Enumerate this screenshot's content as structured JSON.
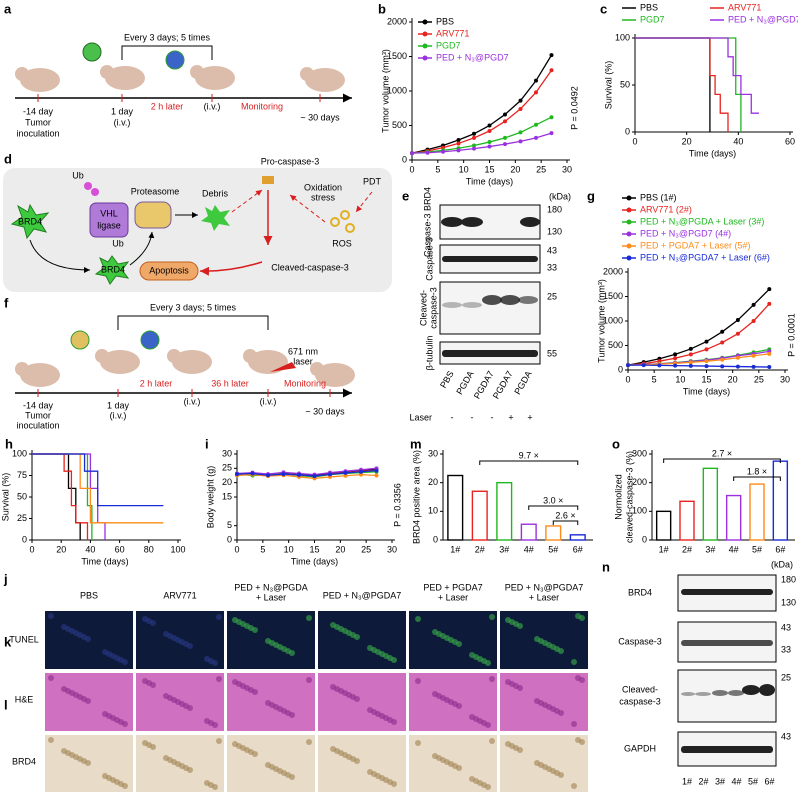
{
  "chart_data": [
    {
      "letter": "b",
      "type": "line",
      "x": [
        0,
        3,
        6,
        9,
        12,
        15,
        18,
        21,
        24,
        27
      ],
      "xlabel": "Time (days)",
      "ylabel": "Tumor volume (mm³)",
      "xlim": [
        0,
        30
      ],
      "xticks": [
        0,
        5,
        10,
        15,
        20,
        25,
        30
      ],
      "ylim": [
        0,
        2000
      ],
      "yticks": [
        0,
        500,
        1000,
        1500,
        2000
      ],
      "legend": "upper left",
      "annotations": [
        "P = 0.0492"
      ],
      "series": [
        {
          "name": "PBS",
          "color": "#000000",
          "values": [
            100,
            150,
            210,
            290,
            380,
            500,
            660,
            860,
            1150,
            1520
          ]
        },
        {
          "name": "ARV771",
          "color": "#e8231f",
          "values": [
            100,
            130,
            180,
            240,
            320,
            420,
            560,
            740,
            980,
            1300
          ]
        },
        {
          "name": "PGD7",
          "color": "#1fb81f",
          "values": [
            100,
            115,
            140,
            170,
            210,
            260,
            320,
            400,
            510,
            620
          ]
        },
        {
          "name": "PED + N₃@PGD7",
          "color": "#9b30e0",
          "values": [
            100,
            105,
            120,
            140,
            165,
            195,
            230,
            270,
            320,
            390
          ]
        }
      ]
    },
    {
      "letter": "c",
      "type": "step",
      "xlabel": "Time (days)",
      "ylabel": "Survival (%)",
      "xlim": [
        0,
        60
      ],
      "xticks": [
        0,
        20,
        40,
        60
      ],
      "ylim": [
        0,
        100
      ],
      "yticks": [
        0,
        50,
        100
      ],
      "legend": "top",
      "series": [
        {
          "name": "PBS",
          "color": "#000000",
          "x": [
            0,
            29
          ],
          "values": [
            100,
            0
          ]
        },
        {
          "name": "ARV771",
          "color": "#e8231f",
          "x": [
            0,
            29,
            31,
            33,
            36
          ],
          "values": [
            100,
            60,
            40,
            20,
            0
          ]
        },
        {
          "name": "PGD7",
          "color": "#1fb81f",
          "x": [
            0,
            39,
            41
          ],
          "values": [
            100,
            40,
            0
          ]
        },
        {
          "name": "PED + N₃@PGD7",
          "color": "#9b30e0",
          "x": [
            0,
            36,
            38,
            41,
            45,
            48
          ],
          "values": [
            100,
            80,
            60,
            40,
            20,
            20
          ]
        }
      ]
    },
    {
      "letter": "g",
      "type": "line",
      "x": [
        0,
        3,
        6,
        9,
        12,
        15,
        18,
        21,
        24,
        27
      ],
      "xlabel": "Time (days)",
      "ylabel": "Tumor volume (mm³)",
      "xlim": [
        0,
        30
      ],
      "xticks": [
        0,
        5,
        10,
        15,
        20,
        25,
        30
      ],
      "ylim": [
        0,
        2000
      ],
      "yticks": [
        0,
        500,
        1000,
        1500,
        2000
      ],
      "legend": "top",
      "annotations": [
        "P = 0.0001"
      ],
      "series": [
        {
          "name": "PBS (1#)",
          "color": "#000000",
          "values": [
            100,
            160,
            230,
            320,
            430,
            580,
            780,
            1020,
            1330,
            1650
          ]
        },
        {
          "name": "ARV771 (2#)",
          "color": "#e8231f",
          "values": [
            100,
            130,
            180,
            240,
            320,
            420,
            560,
            740,
            1000,
            1350
          ]
        },
        {
          "name": "PED + N₃@PGDA + Laser (3#)",
          "color": "#1fb81f",
          "values": [
            100,
            110,
            130,
            150,
            180,
            210,
            250,
            300,
            360,
            420
          ]
        },
        {
          "name": "PED + N₃@PGD7 (4#)",
          "color": "#9b30e0",
          "values": [
            100,
            110,
            125,
            145,
            170,
            200,
            240,
            290,
            330,
            380
          ]
        },
        {
          "name": "PED + PGDA7 + Laser (5#)",
          "color": "#ff8c1a",
          "values": [
            100,
            105,
            120,
            135,
            155,
            180,
            210,
            250,
            290,
            330
          ]
        },
        {
          "name": "PED + N₃@PGDA7 + Laser (6#)",
          "color": "#1a2bd6",
          "values": [
            100,
            100,
            95,
            90,
            85,
            80,
            75,
            70,
            65,
            60
          ]
        }
      ]
    },
    {
      "letter": "h",
      "type": "step",
      "xlabel": "Time (days)",
      "ylabel": "Survival (%)",
      "xlim": [
        0,
        100
      ],
      "xticks": [
        0,
        20,
        40,
        60,
        80,
        100
      ],
      "ylim": [
        0,
        100
      ],
      "yticks": [
        0,
        25,
        50,
        75,
        100
      ],
      "series": [
        {
          "color": "#000000",
          "x": [
            0,
            25,
            30,
            33
          ],
          "values": [
            100,
            60,
            20,
            0
          ]
        },
        {
          "color": "#e8231f",
          "x": [
            0,
            22,
            27,
            30,
            38
          ],
          "values": [
            100,
            80,
            40,
            20,
            0
          ]
        },
        {
          "color": "#1fb81f",
          "x": [
            0,
            38,
            41
          ],
          "values": [
            100,
            40,
            0
          ]
        },
        {
          "color": "#9b30e0",
          "x": [
            0,
            40,
            45,
            50
          ],
          "values": [
            100,
            60,
            20,
            0
          ]
        },
        {
          "color": "#ff8c1a",
          "x": [
            0,
            33,
            40,
            90
          ],
          "values": [
            100,
            60,
            20,
            20
          ]
        },
        {
          "color": "#1a2bd6",
          "x": [
            0,
            36,
            45,
            90
          ],
          "values": [
            100,
            80,
            40,
            40
          ]
        }
      ]
    },
    {
      "letter": "i",
      "type": "line",
      "x": [
        0,
        3,
        6,
        9,
        12,
        15,
        18,
        21,
        24,
        27
      ],
      "xlabel": "Time (days)",
      "ylabel": "Body weight (g)",
      "xlim": [
        0,
        30
      ],
      "xticks": [
        0,
        5,
        10,
        15,
        20,
        25,
        30
      ],
      "ylim": [
        0,
        30
      ],
      "yticks": [
        0,
        5,
        15,
        20,
        25,
        30
      ],
      "annotations": [
        "P = 0.3356"
      ],
      "series": [
        {
          "color": "#000000",
          "values": [
            23,
            23.2,
            22.8,
            23.5,
            23,
            22.5,
            23.3,
            23.8,
            24.2,
            24.6
          ]
        },
        {
          "color": "#e8231f",
          "values": [
            22.8,
            23,
            22.5,
            23,
            22.8,
            22.2,
            23,
            23.5,
            24,
            24.3
          ]
        },
        {
          "color": "#1fb81f",
          "values": [
            23,
            22.5,
            22.7,
            23.2,
            22.5,
            22,
            22.8,
            23.2,
            23.5,
            23.8
          ]
        },
        {
          "color": "#9b30e0",
          "values": [
            23.2,
            23.5,
            23,
            23.6,
            23.2,
            22.8,
            23.5,
            24,
            24.5,
            25
          ]
        },
        {
          "color": "#ff8c1a",
          "values": [
            22.5,
            22.8,
            22.3,
            22.6,
            22,
            21.5,
            22,
            22.4,
            22.8,
            22.5
          ]
        },
        {
          "color": "#1a2bd6",
          "values": [
            23,
            23.2,
            22.6,
            23,
            22.7,
            22.3,
            22.9,
            23.4,
            23.8,
            24.2
          ]
        }
      ]
    },
    {
      "letter": "m",
      "type": "bar",
      "categories": [
        "1#",
        "2#",
        "3#",
        "4#",
        "5#",
        "6#"
      ],
      "values": [
        22.5,
        17,
        20,
        5.5,
        4.9,
        1.8
      ],
      "colors": [
        "#000000",
        "#e8231f",
        "#1fb81f",
        "#9b30e0",
        "#ff8c1a",
        "#1a2bd6"
      ],
      "ylabel": "BRD4 positive area (%)",
      "ylim": [
        0,
        30
      ],
      "yticks": [
        0,
        10,
        20,
        30
      ],
      "annotations": [
        "9.7 ×",
        "3.0 ×",
        "2.6 ×"
      ]
    },
    {
      "letter": "o",
      "type": "bar",
      "categories": [
        "1#",
        "2#",
        "3#",
        "4#",
        "5#",
        "6#"
      ],
      "values": [
        100,
        135,
        250,
        155,
        195,
        275
      ],
      "colors": [
        "#000000",
        "#e8231f",
        "#1fb81f",
        "#9b30e0",
        "#ff8c1a",
        "#1a2bd6"
      ],
      "ylabel": [
        "Normolized",
        "cleaved-caspase-3 (%)"
      ],
      "ylim": [
        0,
        300
      ],
      "yticks": [
        0,
        100,
        200,
        300
      ],
      "annotations": [
        "2.7 ×",
        "1.8 ×"
      ]
    }
  ],
  "diagrams": {
    "a": {
      "letter": "a",
      "texts": [
        "Every 3 days; 5 times",
        "-14 day",
        "Tumor",
        "inoculation",
        "1 day",
        "(i.v.)",
        "2 h later",
        "(i.v.)",
        "Monitoring",
        "~ 30 days"
      ]
    },
    "d": {
      "letter": "d",
      "texts": [
        "BRD4",
        "Ub",
        "VHL",
        "ligase",
        "Ub",
        "BRD4",
        "Proteasome",
        "Debris",
        "Pro-caspase-3",
        "PDT",
        "Oxidation",
        "stress",
        "ROS",
        "Apoptosis",
        "Cleaved-caspase-3"
      ]
    },
    "e": {
      "letter": "e",
      "unit": "(kDa)",
      "rows": [
        "Caspase-3 BRD4",
        "Caspase-3",
        "Cleaved-",
        "caspase-3",
        "β-tubulin"
      ],
      "mw": [
        "180",
        "130",
        "43",
        "33",
        "25",
        "55"
      ],
      "lanes": [
        "PBS",
        "PGDA",
        "PGDA7",
        "PGDA7",
        "PGDA"
      ],
      "laser": "Laser",
      "signs": [
        "-",
        "-",
        "-",
        "+",
        "+"
      ]
    },
    "f": {
      "letter": "f",
      "texts": [
        "Every 3 days; 5 times",
        "-14 day",
        "Tumor",
        "inoculation",
        "1 day",
        "(i.v.)",
        "2 h later",
        "(i.v.)",
        "36 h later",
        "(i.v.)",
        "671 nm",
        "laser",
        "Monitoring",
        "~ 30 days"
      ]
    },
    "jkl": {
      "letters": [
        "j",
        "k",
        "l"
      ],
      "rows": [
        "TUNEL",
        "H&E",
        "BRD4"
      ],
      "columns": [
        [
          "PBS"
        ],
        [
          "ARV771"
        ],
        [
          "PED + N₃@PGDA",
          "+ Laser"
        ],
        [
          "PED + N₃@PGDA7"
        ],
        [
          "PED + PGDA7",
          "+ Laser"
        ],
        [
          "PED + N₃@PGDA7",
          "+ Laser"
        ]
      ]
    },
    "n": {
      "letter": "n",
      "unit": "(kDa)",
      "rows": [
        "BRD4",
        "Caspase-3",
        "Cleaved-",
        "caspase-3",
        "GAPDH"
      ],
      "mw": [
        "180",
        "130",
        "43",
        "33",
        "25",
        "43"
      ],
      "lanes": [
        "1#",
        "2#",
        "3#",
        "4#",
        "5#",
        "6#"
      ]
    }
  }
}
